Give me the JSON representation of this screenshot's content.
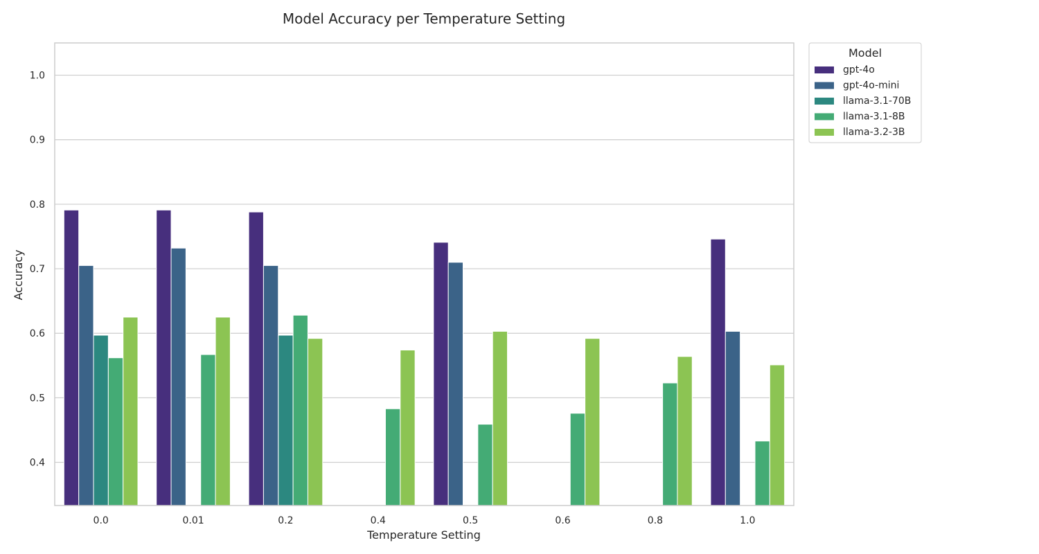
{
  "chart_data": {
    "type": "bar",
    "title": "Model Accuracy per Temperature Setting",
    "xlabel": "Temperature Setting",
    "ylabel": "Accuracy",
    "ylim": [
      0.333,
      1.05
    ],
    "yticks": [
      "0.4",
      "0.5",
      "0.6",
      "0.7",
      "0.8",
      "0.9",
      "1.0"
    ],
    "grid": true,
    "categories": [
      "0.0",
      "0.01",
      "0.2",
      "0.4",
      "0.5",
      "0.6",
      "0.8",
      "1.0"
    ],
    "legend": {
      "title": "Model",
      "placement": "outside-top-right"
    },
    "series": [
      {
        "name": "gpt-4o",
        "color": "#472F7D",
        "values": [
          0.791,
          0.791,
          0.788,
          null,
          0.741,
          null,
          null,
          0.746
        ]
      },
      {
        "name": "gpt-4o-mini",
        "color": "#3B6388",
        "values": [
          0.705,
          0.732,
          0.705,
          null,
          0.71,
          null,
          null,
          0.603
        ]
      },
      {
        "name": "llama-3.1-70B",
        "color": "#2C8880",
        "values": [
          0.597,
          null,
          0.597,
          null,
          null,
          null,
          null,
          null
        ]
      },
      {
        "name": "llama-3.1-8B",
        "color": "#44AB75",
        "values": [
          0.562,
          0.567,
          0.628,
          0.483,
          0.459,
          0.476,
          0.523,
          0.433
        ]
      },
      {
        "name": "llama-3.2-3B",
        "color": "#8CC453",
        "values": [
          0.625,
          0.625,
          0.592,
          0.574,
          0.603,
          0.592,
          0.564,
          0.551
        ]
      }
    ]
  }
}
